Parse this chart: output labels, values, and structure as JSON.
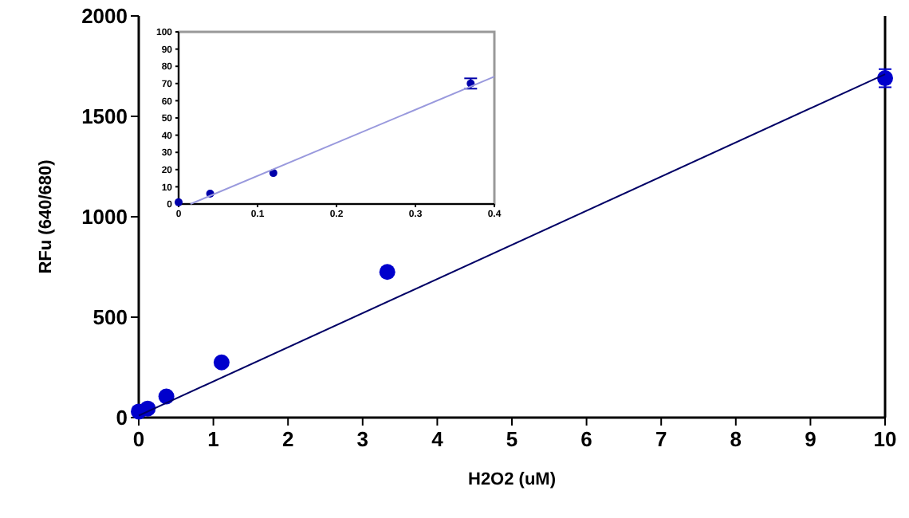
{
  "chart_data": [
    {
      "type": "scatter",
      "xlabel": "H2O2 (uM)",
      "ylabel": "RFu (640/680)",
      "xlim": [
        0,
        10
      ],
      "ylim": [
        0,
        2000
      ],
      "xticks": [
        0,
        1,
        2,
        3,
        4,
        5,
        6,
        7,
        8,
        9,
        10
      ],
      "yticks": [
        0,
        500,
        1000,
        1500,
        2000
      ],
      "grid": false,
      "series": [
        {
          "color": "#0000cc",
          "marker": "circle",
          "x": [
            0,
            0.12,
            0.37,
            1.11,
            3.33,
            10
          ],
          "values": [
            30,
            45,
            105,
            275,
            725,
            1690
          ],
          "errors": [
            null,
            null,
            null,
            null,
            null,
            45
          ]
        },
        {
          "type": "line",
          "color": "#000066",
          "x": [
            0,
            10
          ],
          "values": [
            10,
            1710
          ]
        }
      ]
    },
    {
      "type": "scatter",
      "xlim": [
        0,
        0.4
      ],
      "ylim": [
        0,
        100
      ],
      "xticks": [
        0,
        0.1,
        0.2,
        0.3,
        0.4
      ],
      "yticks": [
        0,
        10,
        20,
        30,
        40,
        50,
        60,
        70,
        80,
        90,
        100
      ],
      "grid": false,
      "series": [
        {
          "color": "#0000aa",
          "marker": "circle",
          "x": [
            0,
            0.04,
            0.12,
            0.37
          ],
          "values": [
            1,
            6,
            18,
            70
          ],
          "errors": [
            null,
            null,
            null,
            3
          ]
        },
        {
          "type": "line",
          "color": "#9999dd",
          "x": [
            0.015,
            0.4
          ],
          "values": [
            0,
            74
          ]
        }
      ]
    }
  ]
}
